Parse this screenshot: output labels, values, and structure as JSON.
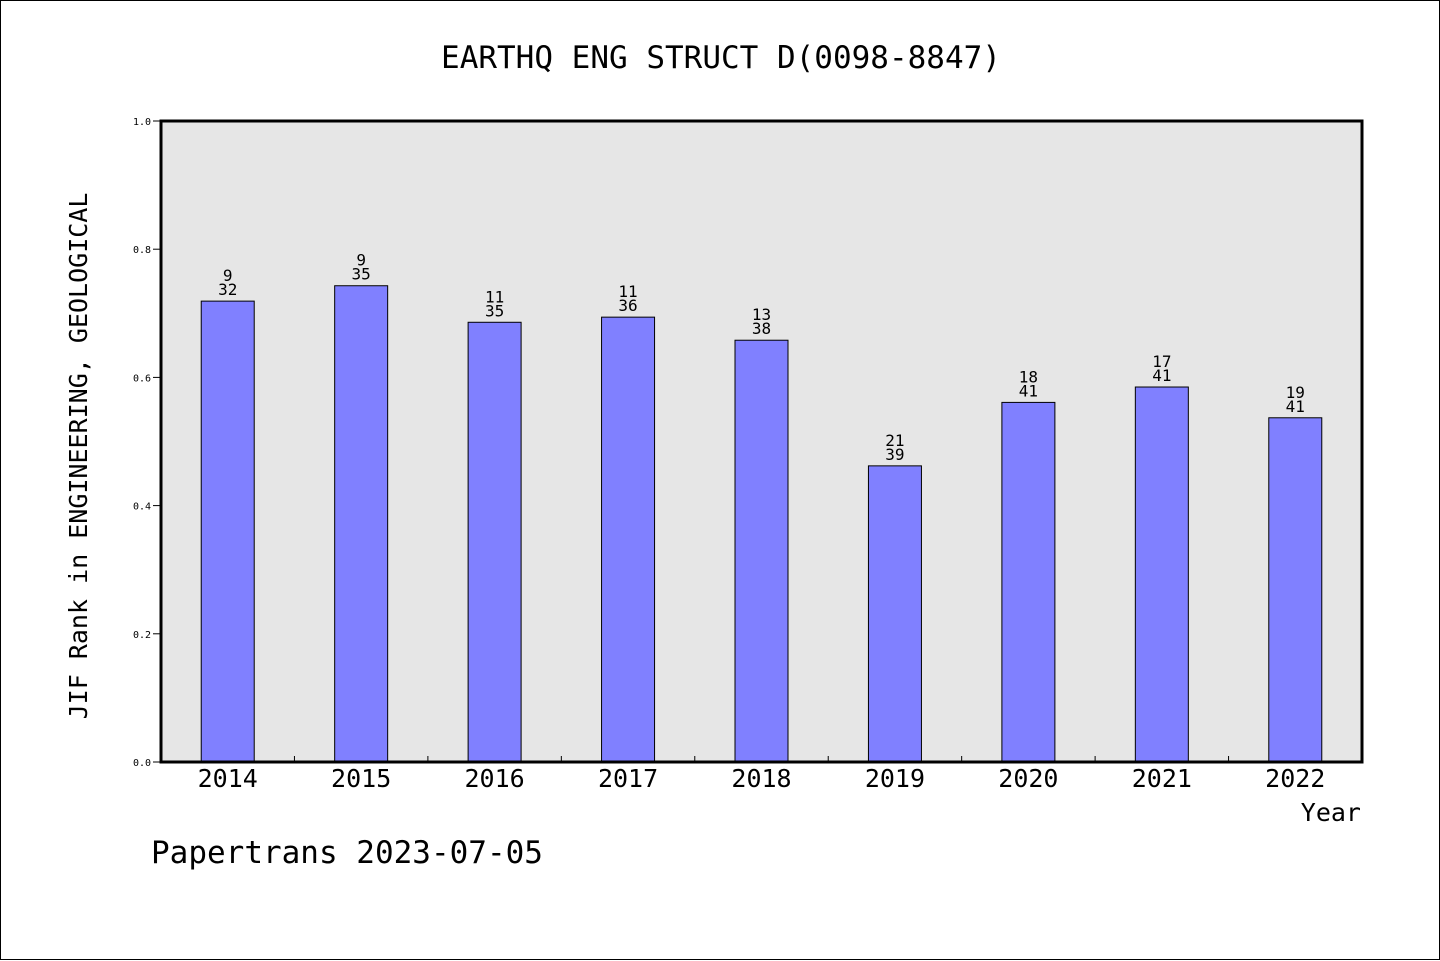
{
  "chart_data": {
    "type": "bar",
    "title": "EARTHQ ENG STRUCT D(0098-8847)",
    "xlabel": "Year",
    "ylabel": "JIF Rank in ENGINEERING, GEOLOGICAL",
    "ylim": [
      0.0,
      1.0
    ],
    "yticks": [
      "0.0",
      "0.2",
      "0.4",
      "0.6",
      "0.8",
      "1.0"
    ],
    "grid": false,
    "categories": [
      "2014",
      "2015",
      "2016",
      "2017",
      "2018",
      "2019",
      "2020",
      "2021",
      "2022"
    ],
    "values": [
      0.719,
      0.743,
      0.686,
      0.694,
      0.658,
      0.462,
      0.561,
      0.585,
      0.537
    ],
    "rank_labels": [
      "9",
      "9",
      "11",
      "11",
      "13",
      "21",
      "18",
      "17",
      "19"
    ],
    "total_labels": [
      "32",
      "35",
      "35",
      "36",
      "38",
      "39",
      "41",
      "41",
      "41"
    ],
    "colors": {
      "bar_fill": "#8080ff",
      "plot_background": "#e6e6e6"
    }
  },
  "footer": {
    "note": "Papertrans 2023-07-05"
  }
}
